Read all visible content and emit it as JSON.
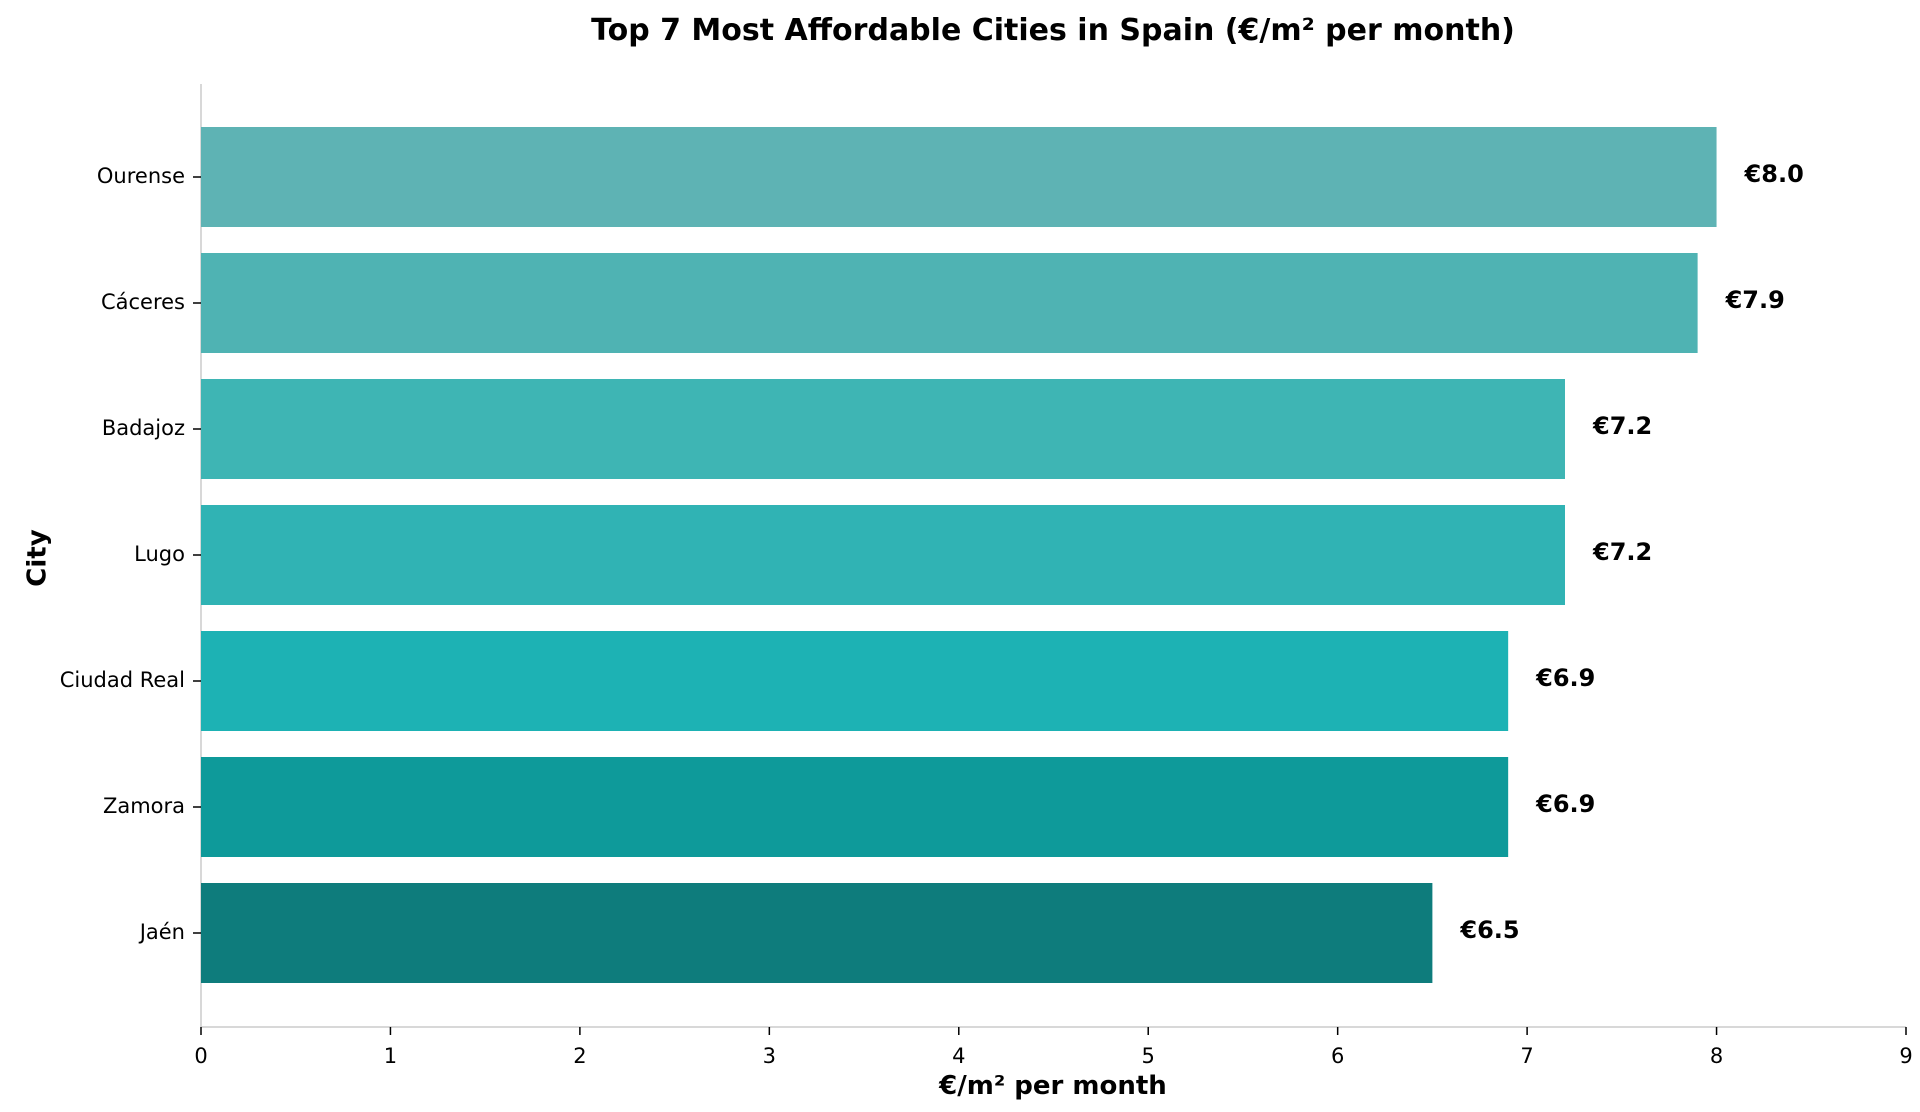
{
  "chart_data": {
    "type": "bar",
    "orientation": "horizontal",
    "title": "Top 7 Most Affordable Cities in Spain (€/m² per month)",
    "xlabel": "€/m² per month",
    "ylabel": "City",
    "categories": [
      "Ourense",
      "Cáceres",
      "Badajoz",
      "Lugo",
      "Ciudad Real",
      "Zamora",
      "Jaén"
    ],
    "values": [
      8.0,
      7.9,
      7.2,
      7.2,
      6.9,
      6.9,
      6.5
    ],
    "value_labels": [
      "€8.0",
      "€7.9",
      "€7.2",
      "€7.2",
      "€6.9",
      "€6.9",
      "€6.5"
    ],
    "bar_colors": [
      "#5eb3b4",
      "#4fb3b3",
      "#3eb5b4",
      "#30b3b4",
      "#1db2b4",
      "#0e9a9a",
      "#0e7c7c"
    ],
    "xlim": [
      0,
      9
    ],
    "xticks": [
      0,
      1,
      2,
      3,
      4,
      5,
      6,
      7,
      8,
      9
    ],
    "xtick_labels": [
      "0",
      "1",
      "2",
      "3",
      "4",
      "5",
      "6",
      "7",
      "8",
      "9"
    ],
    "grid": false,
    "legend": "none"
  }
}
